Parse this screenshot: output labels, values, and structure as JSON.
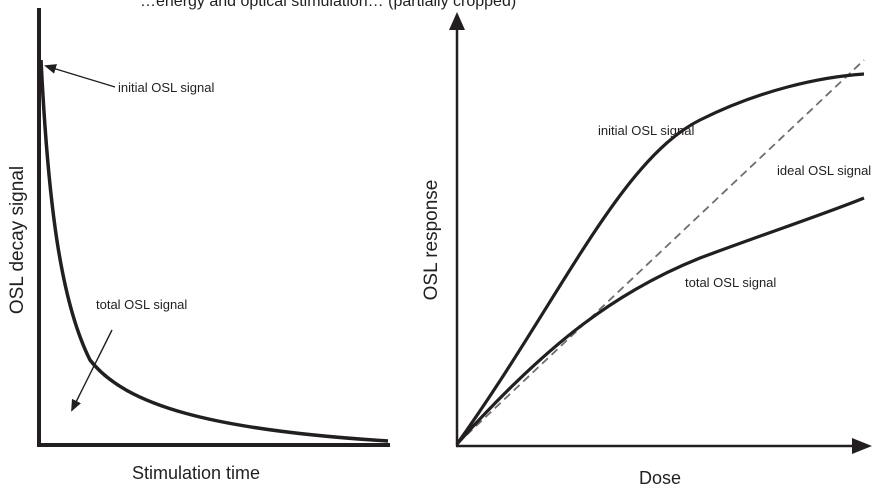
{
  "top_caption": "…energy and optical stimulation… (partially cropped)",
  "left_panel": {
    "x_axis_label": "Stimulation time",
    "y_axis_label": "OSL decay signal",
    "annotations": {
      "initial": "initial OSL signal",
      "total": "total OSL signal"
    }
  },
  "right_panel": {
    "x_axis_label": "Dose",
    "y_axis_label": "OSL response",
    "curves": {
      "initial": "initial OSL signal",
      "ideal": "ideal OSL signal",
      "total": "total OSL signal"
    }
  },
  "colors": {
    "ink": "#231f20",
    "dashed": "#6d6e71"
  }
}
